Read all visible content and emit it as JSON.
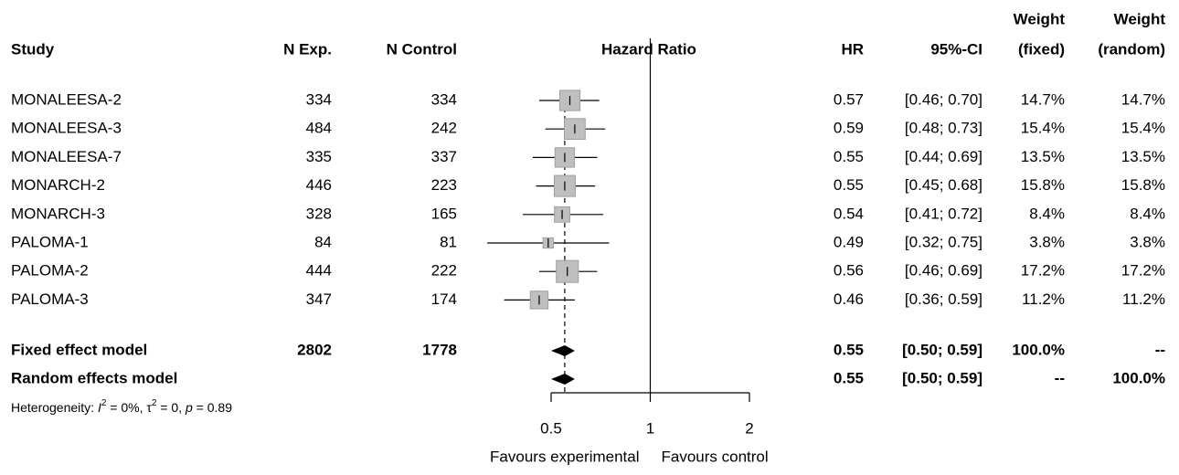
{
  "chart_data": {
    "type": "forest",
    "log_scale": true,
    "headers": {
      "study": "Study",
      "n_exp": "N Exp.",
      "n_control": "N Control",
      "plot": "Hazard Ratio",
      "hr": "HR",
      "ci": "95%-CI",
      "weight_fixed": [
        "Weight",
        "(fixed)"
      ],
      "weight_random": [
        "Weight",
        "(random)"
      ]
    },
    "studies": [
      {
        "name": "MONALEESA-2",
        "n_exp": 334,
        "n_control": 334,
        "hr": 0.57,
        "ci_lower": 0.46,
        "ci_upper": 0.7,
        "ci_label": "[0.46; 0.70]",
        "weight_fixed": 14.7,
        "weight_fixed_label": "14.7%",
        "weight_random": 14.7,
        "weight_random_label": "14.7%"
      },
      {
        "name": "MONALEESA-3",
        "n_exp": 484,
        "n_control": 242,
        "hr": 0.59,
        "ci_lower": 0.48,
        "ci_upper": 0.73,
        "ci_label": "[0.48; 0.73]",
        "weight_fixed": 15.4,
        "weight_fixed_label": "15.4%",
        "weight_random": 15.4,
        "weight_random_label": "15.4%"
      },
      {
        "name": "MONALEESA-7",
        "n_exp": 335,
        "n_control": 337,
        "hr": 0.55,
        "ci_lower": 0.44,
        "ci_upper": 0.69,
        "ci_label": "[0.44; 0.69]",
        "weight_fixed": 13.5,
        "weight_fixed_label": "13.5%",
        "weight_random": 13.5,
        "weight_random_label": "13.5%"
      },
      {
        "name": "MONARCH-2",
        "n_exp": 446,
        "n_control": 223,
        "hr": 0.55,
        "ci_lower": 0.45,
        "ci_upper": 0.68,
        "ci_label": "[0.45; 0.68]",
        "weight_fixed": 15.8,
        "weight_fixed_label": "15.8%",
        "weight_random": 15.8,
        "weight_random_label": "15.8%"
      },
      {
        "name": "MONARCH-3",
        "n_exp": 328,
        "n_control": 165,
        "hr": 0.54,
        "ci_lower": 0.41,
        "ci_upper": 0.72,
        "ci_label": "[0.41; 0.72]",
        "weight_fixed": 8.4,
        "weight_fixed_label": "8.4%",
        "weight_random": 8.4,
        "weight_random_label": "8.4%"
      },
      {
        "name": "PALOMA-1",
        "n_exp": 84,
        "n_control": 81,
        "hr": 0.49,
        "ci_lower": 0.32,
        "ci_upper": 0.75,
        "ci_label": "[0.32; 0.75]",
        "weight_fixed": 3.8,
        "weight_fixed_label": "3.8%",
        "weight_random": 3.8,
        "weight_random_label": "3.8%"
      },
      {
        "name": "PALOMA-2",
        "n_exp": 444,
        "n_control": 222,
        "hr": 0.56,
        "ci_lower": 0.46,
        "ci_upper": 0.69,
        "ci_label": "[0.46; 0.69]",
        "weight_fixed": 17.2,
        "weight_fixed_label": "17.2%",
        "weight_random": 17.2,
        "weight_random_label": "17.2%"
      },
      {
        "name": "PALOMA-3",
        "n_exp": 347,
        "n_control": 174,
        "hr": 0.46,
        "ci_lower": 0.36,
        "ci_upper": 0.59,
        "ci_label": "[0.36; 0.59]",
        "weight_fixed": 11.2,
        "weight_fixed_label": "11.2%",
        "weight_random": 11.2,
        "weight_random_label": "11.2%"
      }
    ],
    "models": [
      {
        "name": "Fixed effect model",
        "n_exp": 2802,
        "n_control": 1778,
        "hr": 0.55,
        "ci_lower": 0.5,
        "ci_upper": 0.59,
        "ci_label": "[0.50; 0.59]",
        "weight_fixed": 100,
        "weight_fixed_label": "100.0%",
        "weight_random": null,
        "weight_random_label": "--"
      },
      {
        "name": "Random effects model",
        "hr": 0.55,
        "ci_lower": 0.5,
        "ci_upper": 0.59,
        "ci_label": "[0.50; 0.59]",
        "weight_fixed": null,
        "weight_fixed_label": "--",
        "weight_random": 100,
        "weight_random_label": "100.0%"
      }
    ],
    "heterogeneity": [
      {
        "text": "Heterogeneity: "
      },
      {
        "text": "I",
        "style": "italic"
      },
      {
        "text": "2",
        "style": "sup"
      },
      {
        "text": " = 0%, "
      },
      {
        "text": "τ"
      },
      {
        "text": "2",
        "style": "sup"
      },
      {
        "text": " = 0, "
      },
      {
        "text": "p",
        "style": "italic"
      },
      {
        "text": " = 0.89"
      }
    ],
    "xlim": [
      0.5,
      2
    ],
    "xticks": [
      0.5,
      1,
      2
    ],
    "reference_line": 1,
    "favours": [
      "Favours experimental",
      "Favours control"
    ],
    "box_color": "#bfbfbf",
    "diamond_color": "#000000"
  }
}
